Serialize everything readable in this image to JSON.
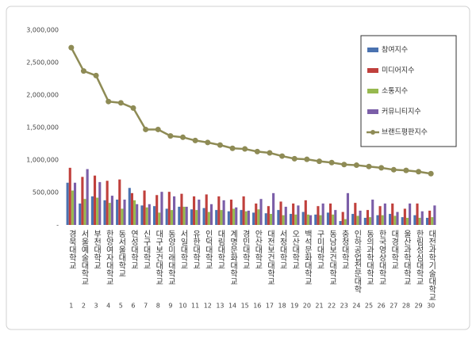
{
  "chart_data": {
    "type": "bar",
    "categories": [
      "경북대학교",
      "서울예술대학교",
      "부천대학교",
      "한양여자대학교",
      "동서울대학교",
      "연성대학교",
      "신구대학교",
      "대구보건대학교",
      "동양미래대학교",
      "서일대학교",
      "유한대학교",
      "인덕대학교",
      "대림대학교",
      "계명문화대학교",
      "경민대학교",
      "안산대학교",
      "대전보건대학교",
      "서정대학교",
      "오산대학교",
      "백석문화대학교",
      "구미대학교",
      "동남보건대학교",
      "충청대학교",
      "인하공업전문대학",
      "동의과학대학교",
      "한국영상대학교",
      "대경대학교",
      "울산과학대학교",
      "한림성심대학교",
      "대전과학기술대학교"
    ],
    "ranks": [
      1,
      2,
      3,
      4,
      5,
      6,
      7,
      8,
      9,
      10,
      11,
      12,
      13,
      14,
      15,
      16,
      17,
      18,
      19,
      20,
      21,
      22,
      23,
      24,
      25,
      26,
      27,
      28,
      29,
      30
    ],
    "series": [
      {
        "name": "참여지수",
        "color": "#4a72b0",
        "values": [
          650000,
          330000,
          440000,
          380000,
          390000,
          570000,
          300000,
          290000,
          250000,
          280000,
          240000,
          260000,
          230000,
          210000,
          230000,
          190000,
          180000,
          230000,
          170000,
          200000,
          160000,
          190000,
          60000,
          170000,
          110000,
          150000,
          170000,
          120000,
          150000,
          110000
        ]
      },
      {
        "name": "미디어지수",
        "color": "#c0403c",
        "values": [
          880000,
          740000,
          760000,
          680000,
          700000,
          490000,
          530000,
          460000,
          510000,
          480000,
          440000,
          470000,
          440000,
          390000,
          440000,
          330000,
          290000,
          360000,
          330000,
          380000,
          290000,
          330000,
          200000,
          340000,
          230000,
          290000,
          330000,
          250000,
          330000,
          220000
        ]
      },
      {
        "name": "소통지수",
        "color": "#97b94f",
        "values": [
          530000,
          400000,
          420000,
          340000,
          250000,
          380000,
          270000,
          190000,
          230000,
          280000,
          230000,
          200000,
          230000,
          250000,
          210000,
          240000,
          170000,
          150000,
          160000,
          160000,
          150000,
          160000,
          90000,
          140000,
          120000,
          150000,
          140000,
          110000,
          110000,
          120000
        ]
      },
      {
        "name": "커뮤니티지수",
        "color": "#7b5ea8",
        "values": [
          650000,
          860000,
          660000,
          450000,
          390000,
          320000,
          320000,
          510000,
          440000,
          280000,
          390000,
          320000,
          380000,
          270000,
          220000,
          400000,
          490000,
          280000,
          300000,
          150000,
          330000,
          230000,
          490000,
          220000,
          390000,
          330000,
          200000,
          330000,
          210000,
          300000
        ]
      },
      {
        "name": "브랜드평판지수",
        "color": "#8e8b55",
        "type": "line",
        "values": [
          2730000,
          2370000,
          2300000,
          1900000,
          1880000,
          1800000,
          1470000,
          1470000,
          1370000,
          1350000,
          1300000,
          1270000,
          1230000,
          1180000,
          1170000,
          1130000,
          1110000,
          1060000,
          1020000,
          1010000,
          980000,
          960000,
          930000,
          920000,
          900000,
          880000,
          850000,
          840000,
          820000,
          790000
        ]
      }
    ],
    "ylim": [
      0,
      3000000
    ],
    "yticks": [
      {
        "value": 0,
        "label": "-"
      },
      {
        "value": 500000,
        "label": "500,000"
      },
      {
        "value": 1000000,
        "label": "1,000,000"
      },
      {
        "value": 1500000,
        "label": "1,500,000"
      },
      {
        "value": 2000000,
        "label": "2,000,000"
      },
      {
        "value": 2500000,
        "label": "2,500,000"
      },
      {
        "value": 3000000,
        "label": "3,000,000"
      }
    ],
    "grid": false,
    "legend": "top-right"
  }
}
